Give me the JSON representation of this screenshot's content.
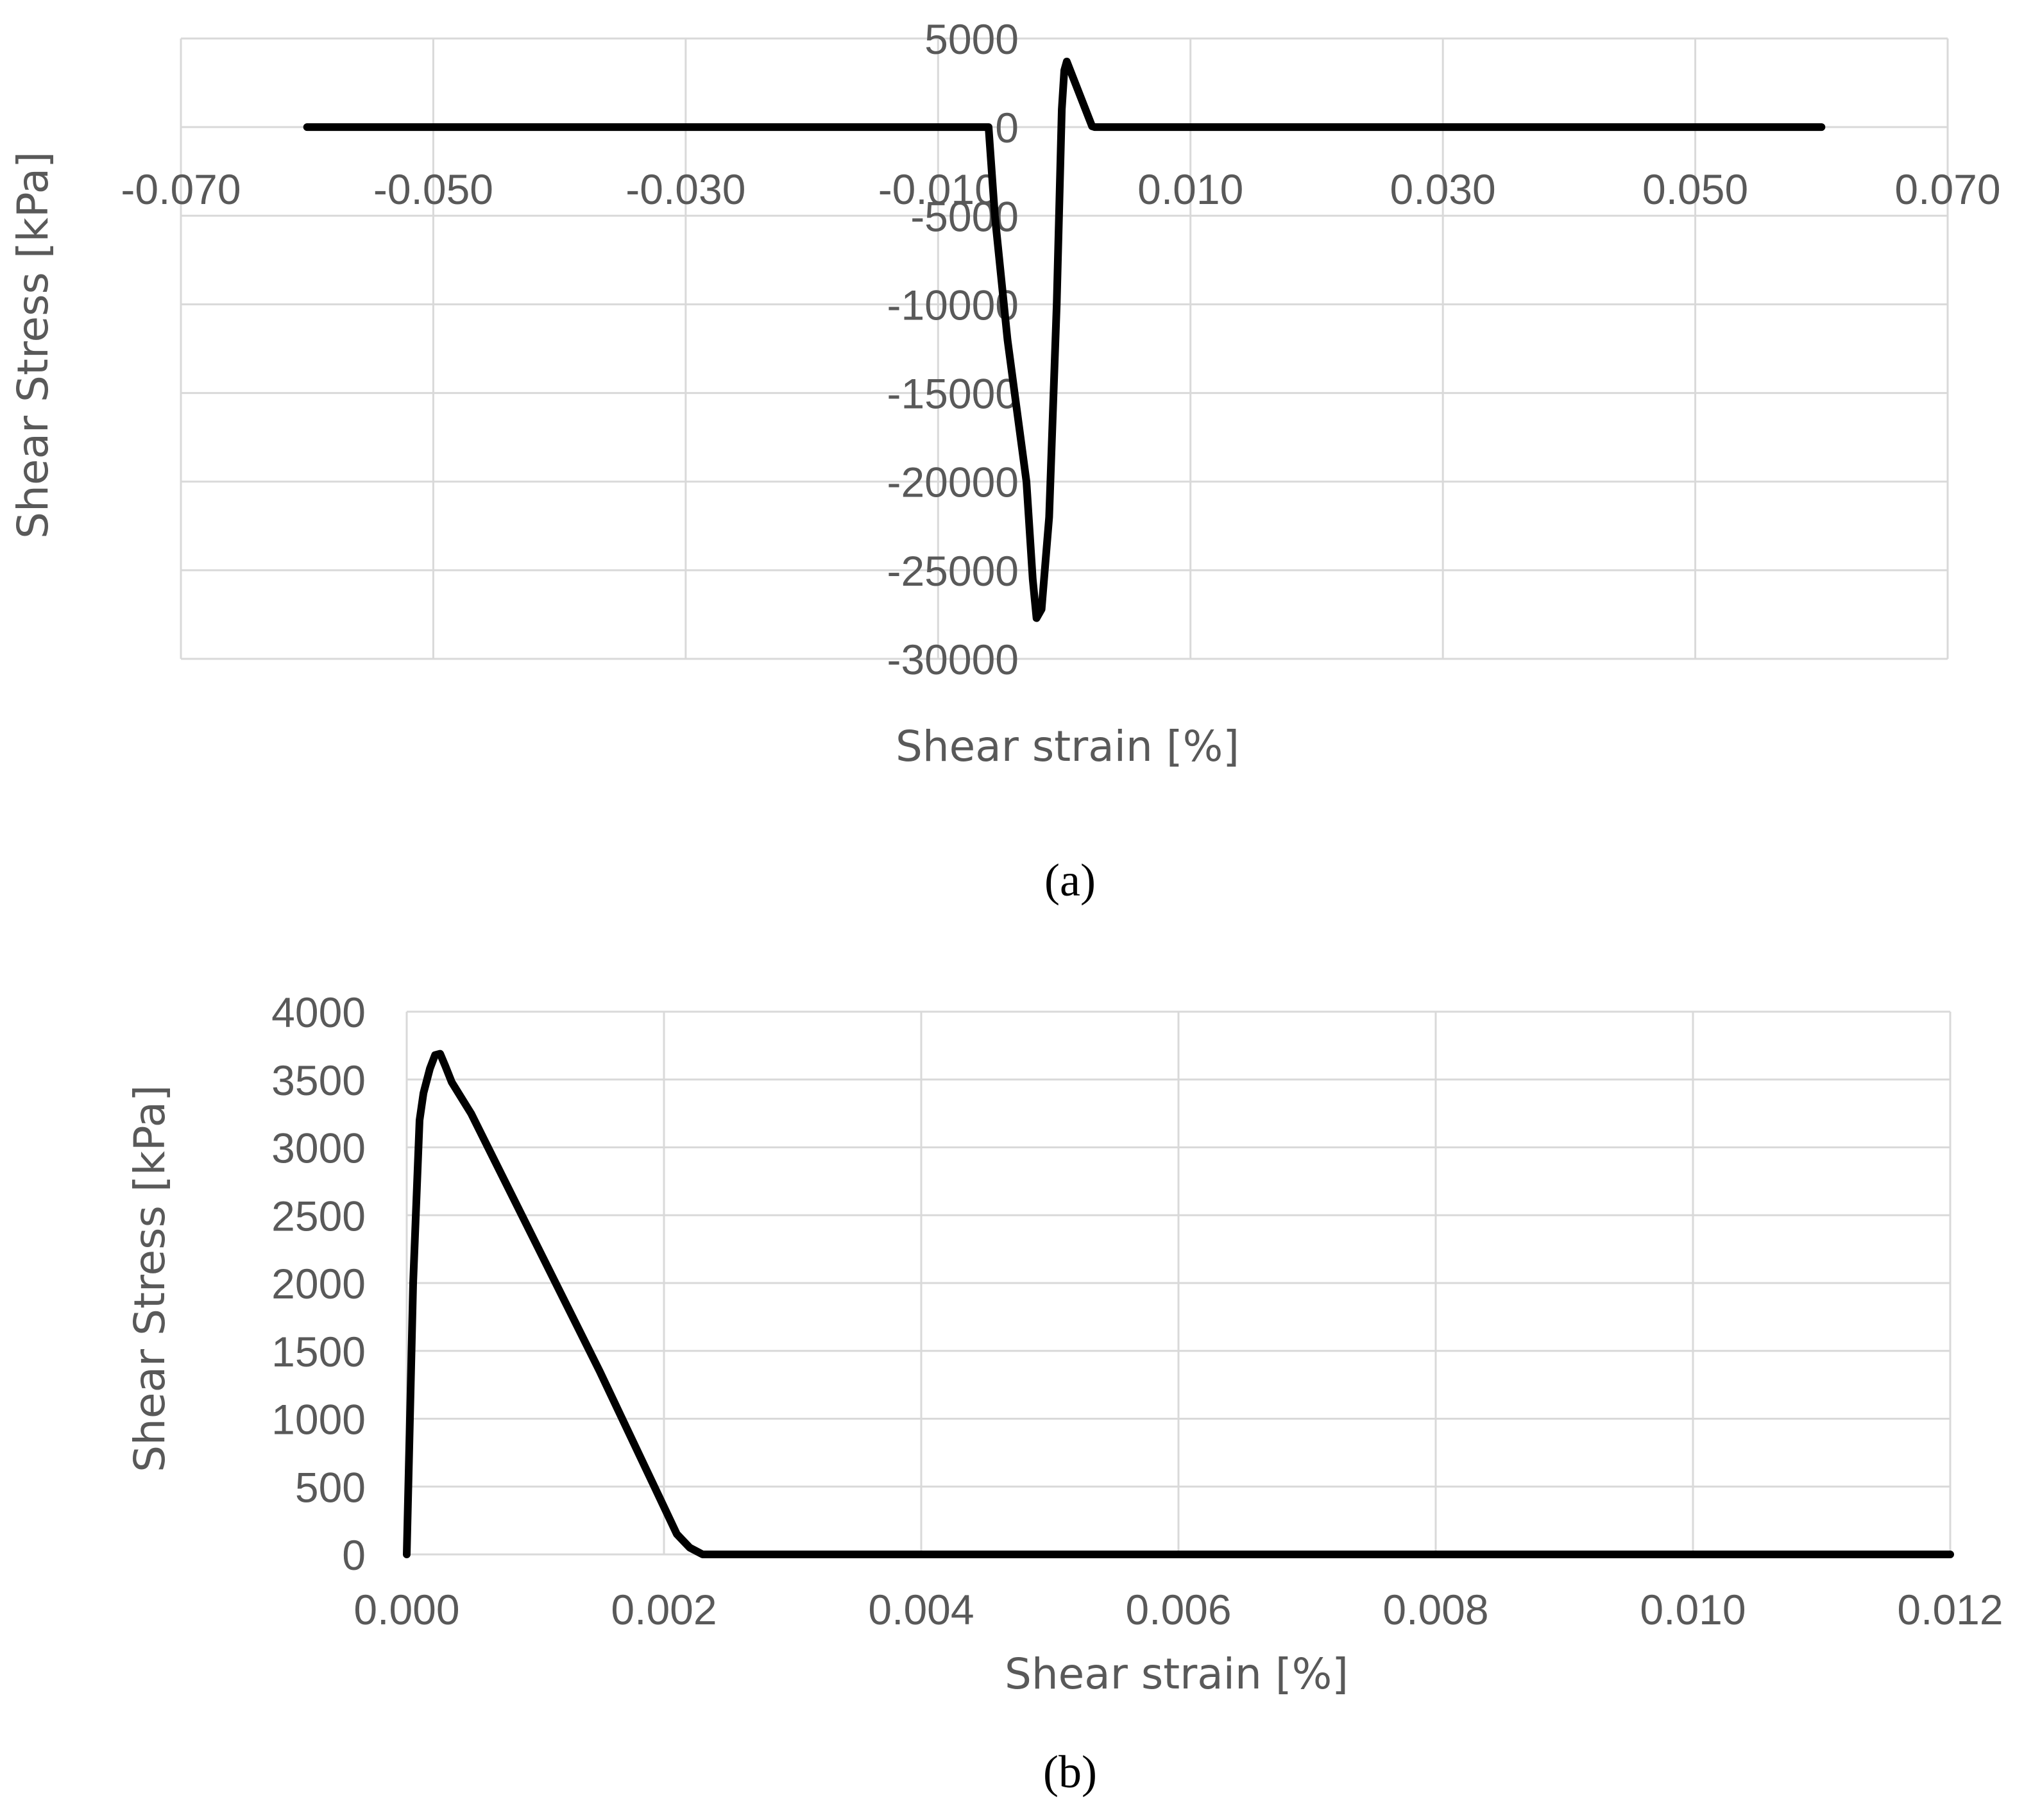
{
  "chart_data": [
    {
      "type": "line",
      "xlabel": "Shear strain [%]",
      "ylabel": "Shear Stress [kPa]",
      "caption": "(a)",
      "xlim": [
        -0.07,
        0.07
      ],
      "ylim": [
        -30000,
        5000
      ],
      "xticks": [
        -0.07,
        -0.05,
        -0.03,
        -0.01,
        0.01,
        0.03,
        0.05,
        0.07
      ],
      "xtick_labels": [
        "-0.070",
        "-0.050",
        "-0.030",
        "-0.010",
        "0.010",
        "0.030",
        "0.050",
        "0.070"
      ],
      "yticks": [
        5000,
        0,
        -5000,
        -10000,
        -15000,
        -20000,
        -25000,
        -30000
      ],
      "ytick_labels": [
        "5000",
        "0",
        "-5000",
        "-10000",
        "-15000",
        "-20000",
        "-25000",
        "-30000"
      ],
      "grid": true,
      "series": [
        {
          "color": "#000000",
          "x": [
            -0.06,
            -0.006,
            -0.0055,
            -0.0045,
            -0.003,
            -0.0025,
            -0.0022,
            -0.0018,
            -0.0012,
            -0.0006,
            -0.0002,
            0.0,
            0.0002,
            0.0022,
            0.0024,
            0.06
          ],
          "y": [
            0,
            0,
            -5000,
            -12000,
            -20000,
            -25500,
            -27700,
            -27200,
            -22000,
            -10000,
            1000,
            3200,
            3700,
            50,
            0,
            0
          ]
        }
      ]
    },
    {
      "type": "line",
      "xlabel": "Shear strain [%]",
      "ylabel": "Shear Stress [kPa]",
      "caption": "(b)",
      "xlim": [
        0,
        0.012
      ],
      "ylim": [
        0,
        4000
      ],
      "xticks": [
        0,
        0.002,
        0.004,
        0.006,
        0.008,
        0.01,
        0.012
      ],
      "xtick_labels": [
        "0.000",
        "0.002",
        "0.004",
        "0.006",
        "0.008",
        "0.010",
        "0.012"
      ],
      "yticks": [
        0,
        500,
        1000,
        1500,
        2000,
        2500,
        3000,
        3500,
        4000
      ],
      "ytick_labels": [
        "0",
        "500",
        "1000",
        "1500",
        "2000",
        "2500",
        "3000",
        "3500",
        "4000"
      ],
      "grid": true,
      "series": [
        {
          "color": "#000000",
          "x": [
            0.0,
            3e-05,
            5e-05,
            0.0001,
            0.00013,
            0.00018,
            0.00022,
            0.00026,
            0.0003,
            0.00035,
            0.0005,
            0.001,
            0.0015,
            0.002,
            0.0021,
            0.0022,
            0.0023,
            0.0025,
            0.012
          ],
          "y": [
            0,
            1200,
            2000,
            3200,
            3400,
            3580,
            3680,
            3690,
            3600,
            3480,
            3250,
            2300,
            1350,
            350,
            150,
            50,
            0,
            0,
            0
          ]
        }
      ]
    }
  ]
}
